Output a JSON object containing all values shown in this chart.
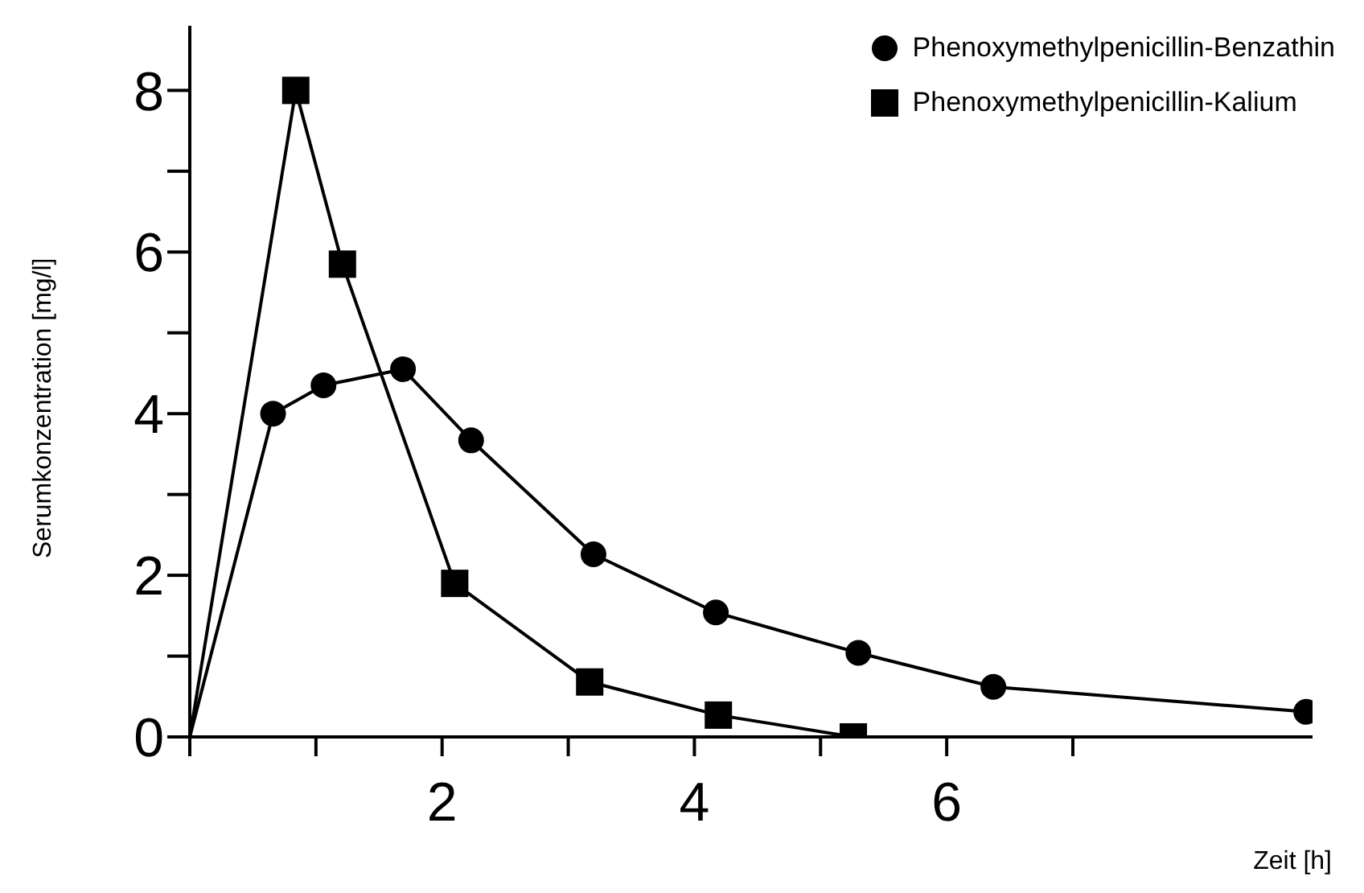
{
  "chart_data": {
    "type": "line",
    "xlabel": "Zeit [h]",
    "ylabel": "Serumkonzentration [mg/l]",
    "xlim": [
      0,
      8.9
    ],
    "ylim": [
      0,
      8.8
    ],
    "xticks": [
      {
        "value": 0,
        "label": null
      },
      {
        "value": 1,
        "label": null
      },
      2,
      {
        "value": 3,
        "label": null
      },
      4,
      {
        "value": 5,
        "label": null
      },
      6,
      {
        "value": 7,
        "label": null
      }
    ],
    "yticks": [
      0,
      {
        "value": 1,
        "label": null
      },
      2,
      {
        "value": 3,
        "label": null
      },
      4,
      {
        "value": 5,
        "label": null
      },
      6,
      {
        "value": 7,
        "label": null
      },
      8
    ],
    "legend": "top right",
    "grid": false,
    "line_style": "solid",
    "series": [
      {
        "name": "Phenoxymethylpenicillin-Benzathin",
        "color": "#000000",
        "marker": "circle",
        "x": [
          0,
          0.66,
          1.06,
          1.69,
          2.23,
          3.2,
          4.17,
          5.3,
          6.37,
          8.85
        ],
        "values": [
          0,
          4.0,
          4.35,
          4.55,
          3.67,
          2.26,
          1.54,
          1.04,
          0.62,
          0.31
        ]
      },
      {
        "name": "Phenoxymethylpenicillin-Kalium",
        "color": "#000000",
        "marker": "square",
        "x": [
          0,
          0.84,
          1.21,
          2.1,
          3.17,
          4.19,
          5.26
        ],
        "values": [
          0,
          8.0,
          5.85,
          1.9,
          0.68,
          0.27,
          0.0
        ]
      }
    ]
  }
}
